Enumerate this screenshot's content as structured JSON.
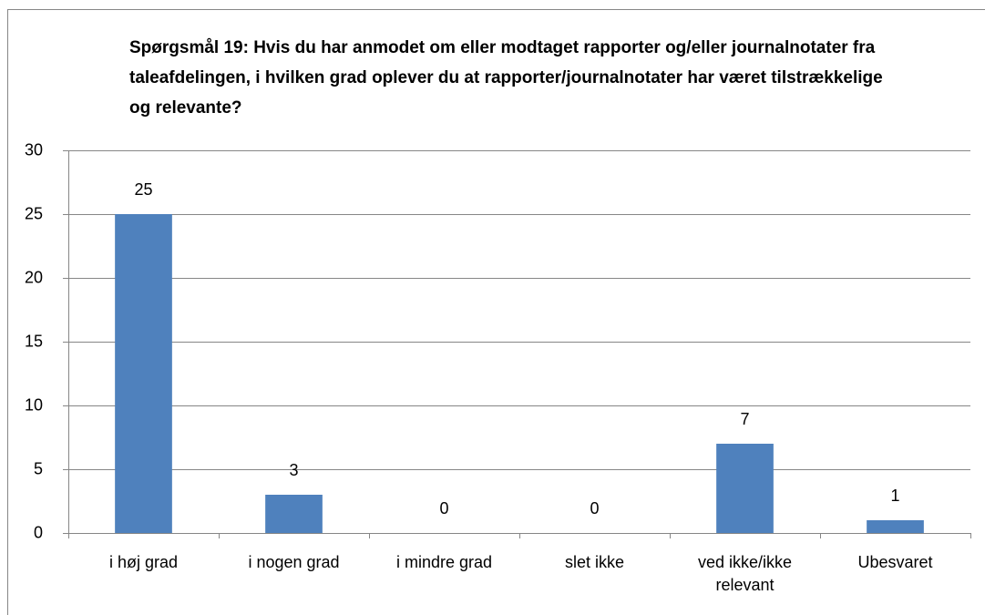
{
  "chart_data": {
    "type": "bar",
    "title": "Spørgsmål 19: Hvis du har anmodet om eller modtaget rapporter og/eller journalnotater fra taleafdelingen, i hvilken grad oplever du at rapporter/journalnotater har været tilstrækkelige og relevante?",
    "categories": [
      "i høj grad",
      "i nogen grad",
      "i mindre grad",
      "slet ikke",
      "ved ikke/ikke relevant",
      "Ubesvaret"
    ],
    "values": [
      25,
      3,
      0,
      0,
      7,
      1
    ],
    "color": "#4f81bd",
    "ylim": [
      0,
      30
    ],
    "yticks": [
      0,
      5,
      10,
      15,
      20,
      25,
      30
    ],
    "grid": true
  }
}
